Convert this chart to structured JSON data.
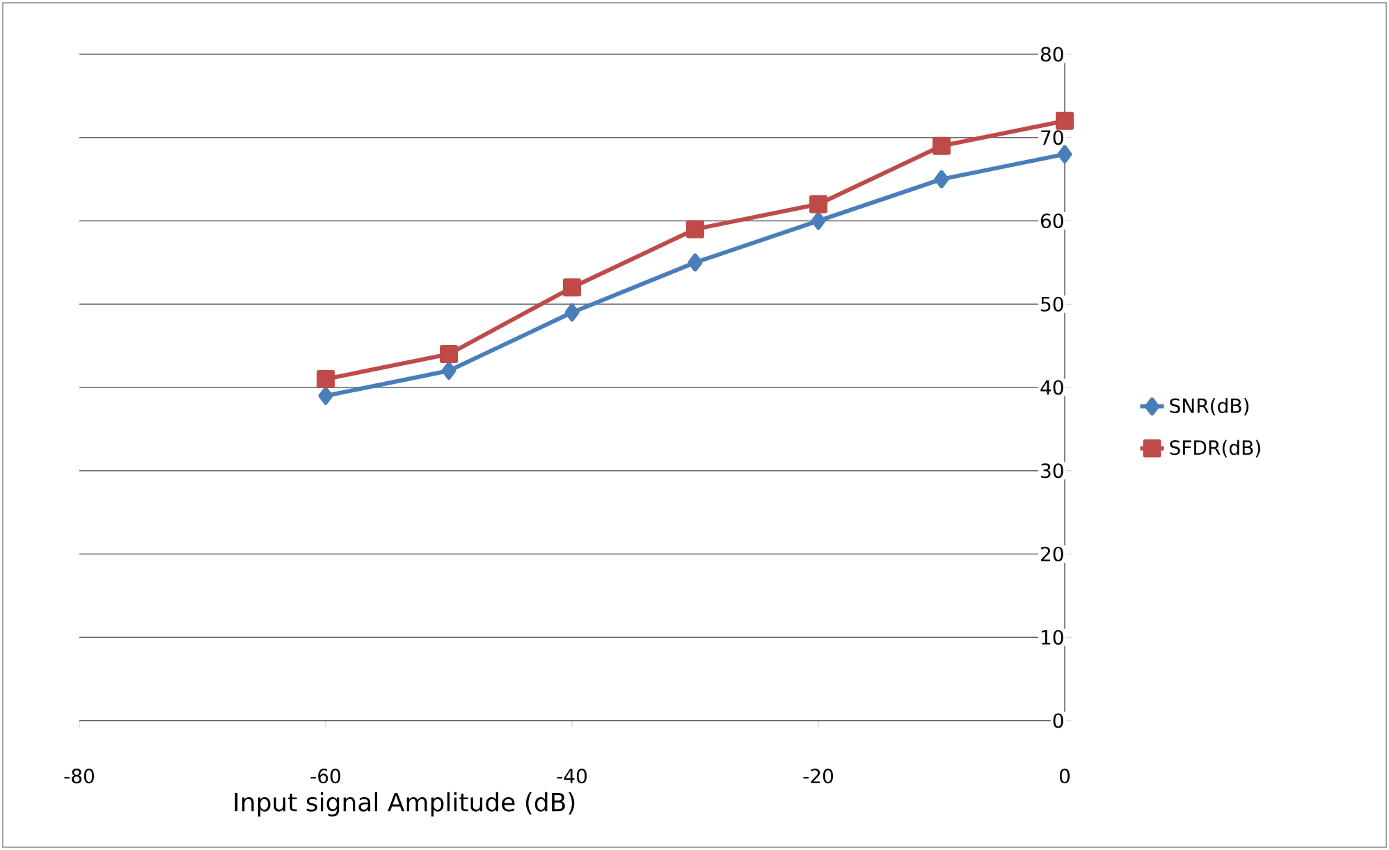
{
  "chart_data": {
    "type": "line",
    "xlabel": "Input signal Amplitude (dB)",
    "x": [
      -60,
      -50,
      -40,
      -30,
      -20,
      -10,
      0
    ],
    "series": [
      {
        "name": "SNR(dB)",
        "color": "#4a7ebb",
        "marker": "diamond",
        "values": [
          39,
          42,
          49,
          55,
          60,
          65,
          68
        ]
      },
      {
        "name": "SFDR(dB)",
        "color": "#be4b48",
        "marker": "square",
        "values": [
          41,
          44,
          52,
          59,
          62,
          69,
          72
        ]
      }
    ],
    "xlim": [
      -80,
      0
    ],
    "xticks": [
      -80,
      -60,
      -40,
      -20,
      0
    ],
    "ylim": [
      0,
      80
    ],
    "yticks": [
      0,
      10,
      20,
      30,
      40,
      50,
      60,
      70,
      80
    ],
    "grid": "y",
    "legend": "right",
    "line_style": "solid"
  }
}
